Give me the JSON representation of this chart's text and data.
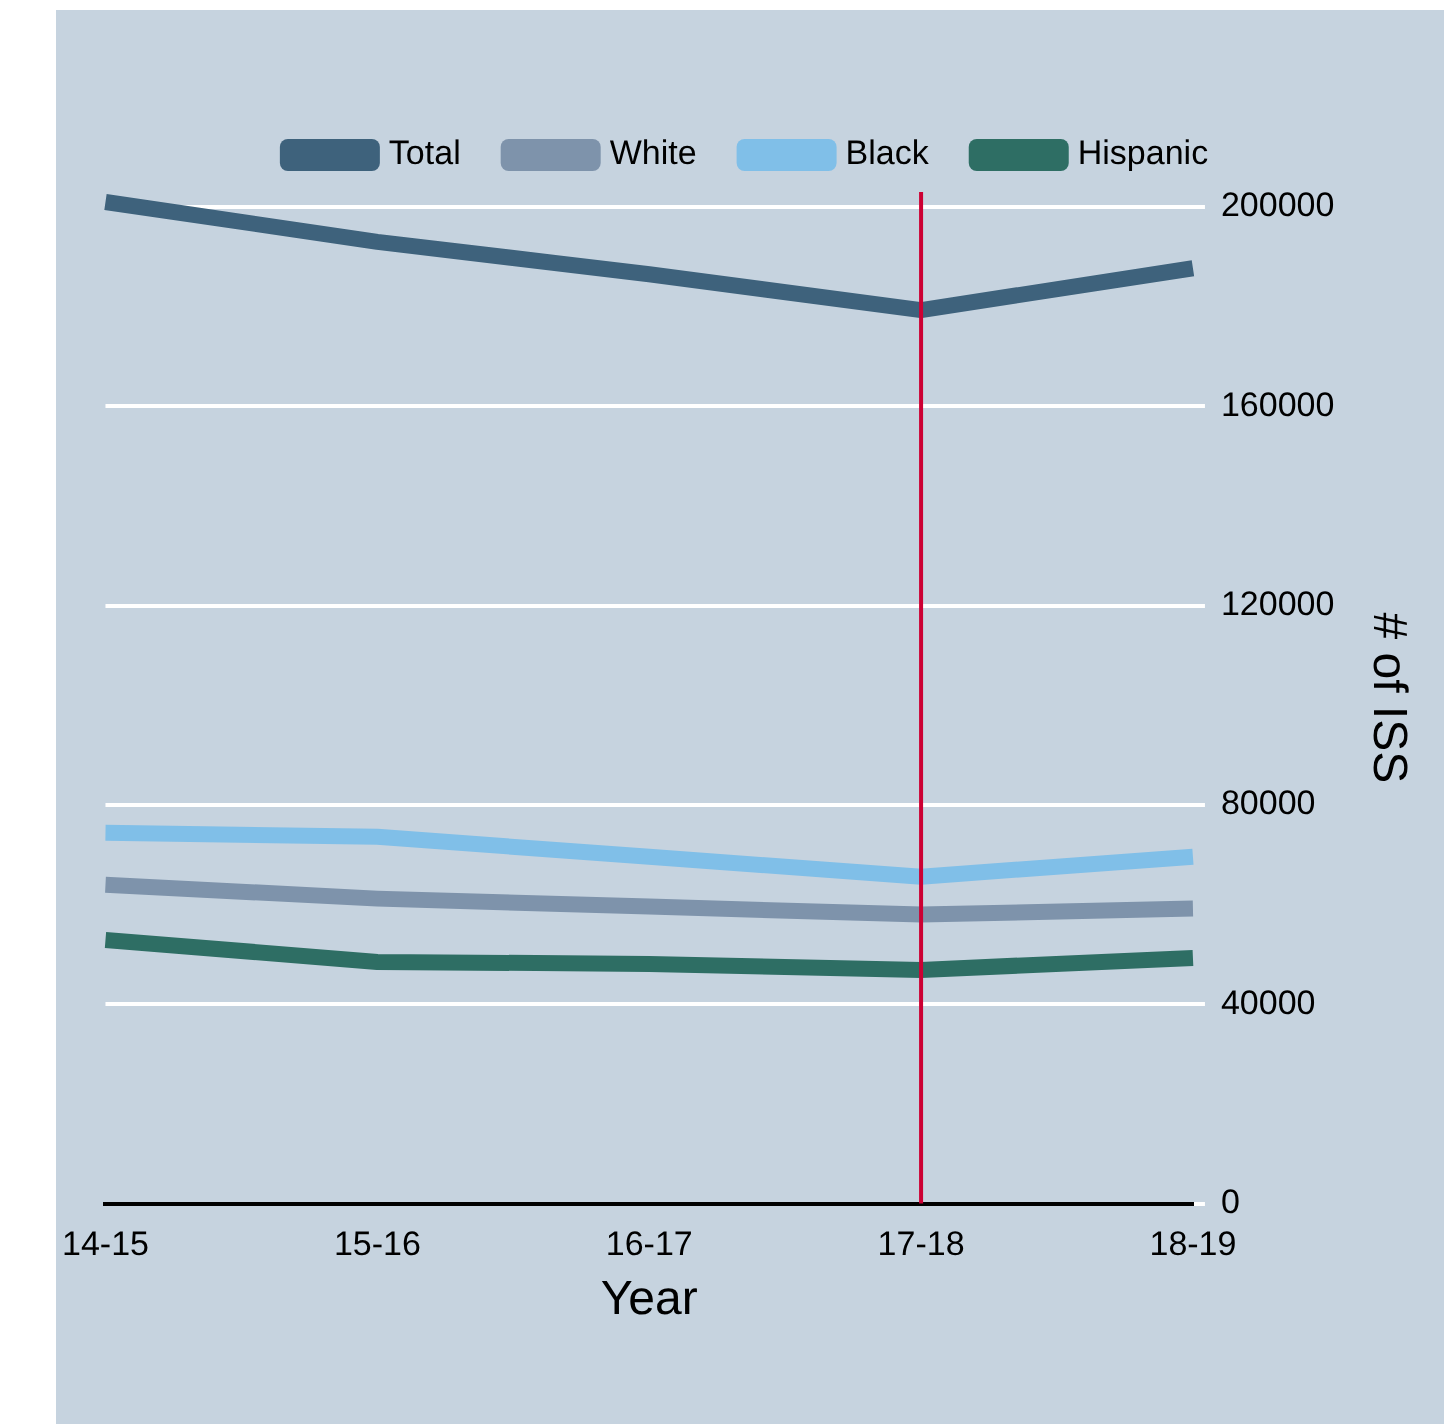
{
  "chart_data": {
    "type": "line",
    "xlabel": "Year",
    "ylabel": "# of ISS",
    "categories": [
      "14-15",
      "15-16",
      "16-17",
      "17-18",
      "18-19"
    ],
    "series": [
      {
        "name": "Total",
        "color": "#3e627c",
        "values": [
          201000,
          193000,
          186500,
          179300,
          187700
        ]
      },
      {
        "name": "White",
        "color": "#7e93ab",
        "values": [
          64000,
          61200,
          59600,
          58000,
          59200
        ]
      },
      {
        "name": "Black",
        "color": "#80bfe8",
        "values": [
          74400,
          73600,
          69600,
          65600,
          69600
        ]
      },
      {
        "name": "Hispanic",
        "color": "#2e6e64",
        "values": [
          52900,
          48500,
          48100,
          46900,
          49300
        ]
      }
    ],
    "ylim": [
      0,
      203000
    ],
    "yticks": [
      0,
      40000,
      80000,
      120000,
      160000,
      200000
    ],
    "grid": "y",
    "legend": "top",
    "ref_lines": [
      {
        "axis": "x",
        "value": "17-18",
        "color": "#cc0033"
      }
    ]
  }
}
